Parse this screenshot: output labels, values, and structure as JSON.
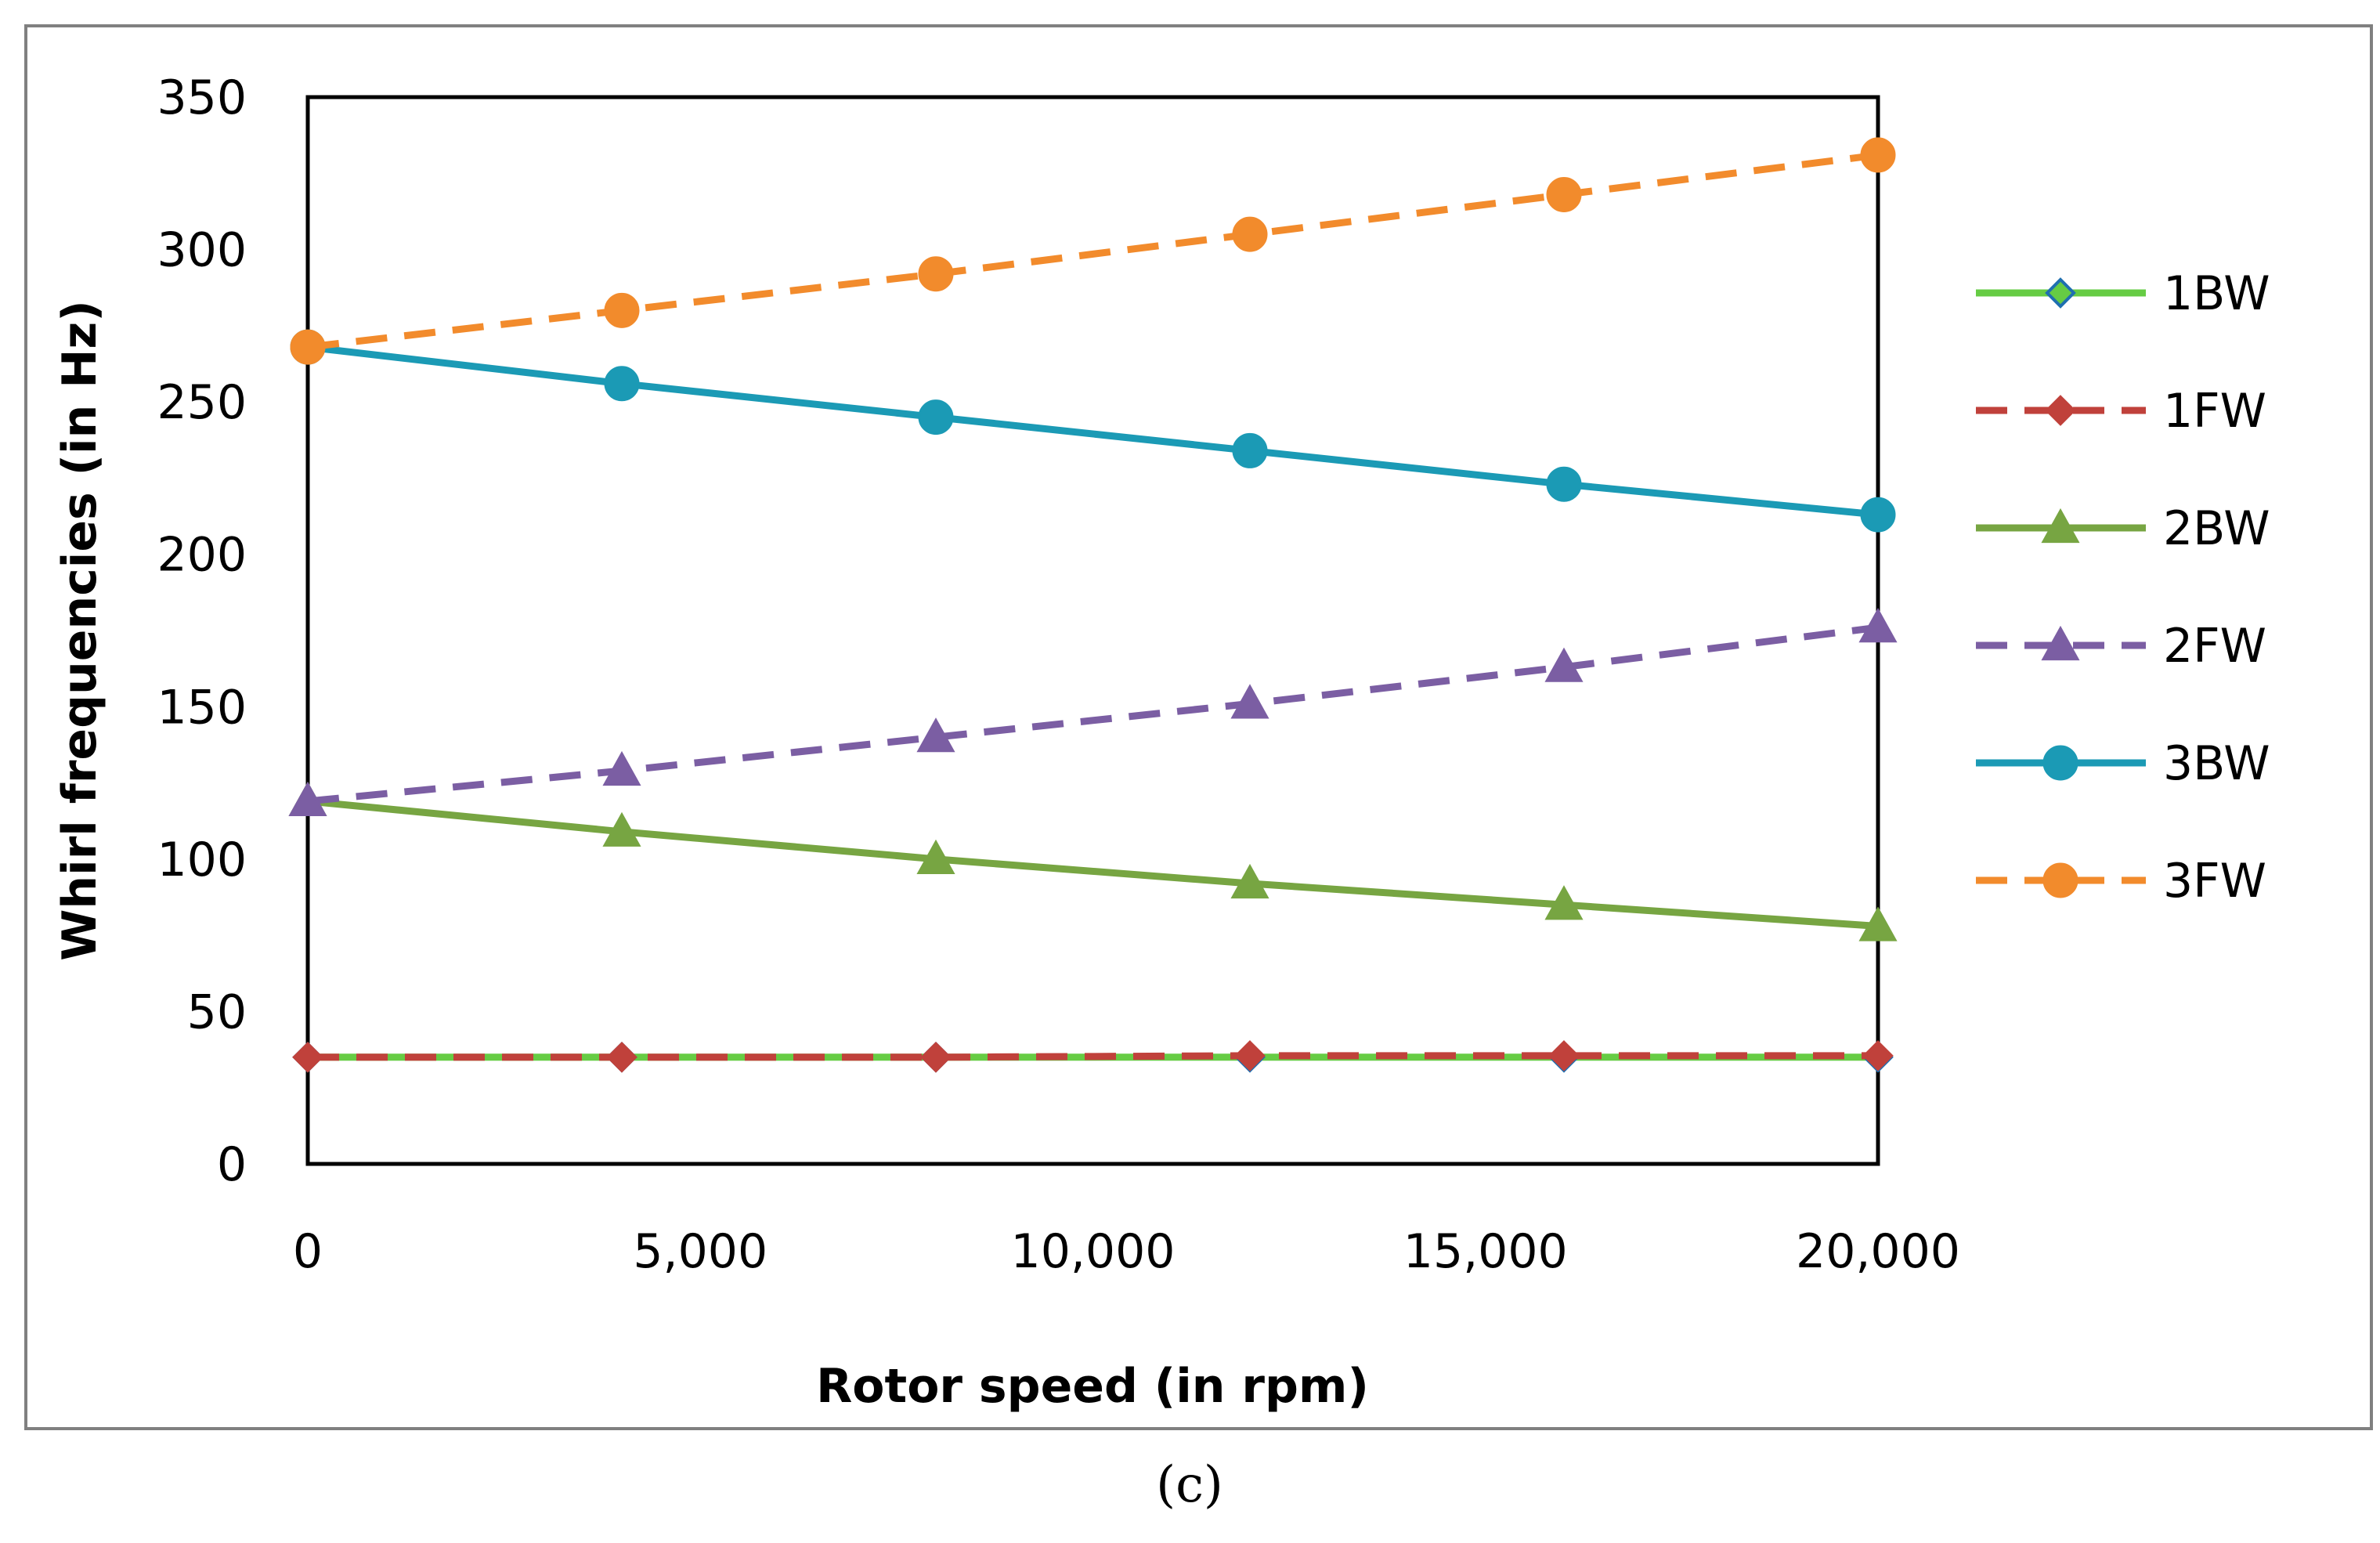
{
  "chart_data": {
    "type": "line",
    "title": "",
    "xlabel": "Rotor speed (in rpm)",
    "ylabel": "Whirl frequencies (in Hz)",
    "caption": "(c)",
    "x": [
      0,
      4000,
      8000,
      12000,
      16000,
      20000
    ],
    "xlim": [
      0,
      20000
    ],
    "ylim": [
      0,
      350
    ],
    "xticks": [
      0,
      5000,
      10000,
      15000,
      20000
    ],
    "xtick_labels": [
      "0",
      "5,000",
      "10,000",
      "15,000",
      "20,000"
    ],
    "yticks": [
      0,
      50,
      100,
      150,
      200,
      250,
      300,
      350
    ],
    "ytick_labels": [
      "0",
      "50",
      "100",
      "150",
      "200",
      "250",
      "300",
      "350"
    ],
    "grid": false,
    "legend_position": "right",
    "series": [
      {
        "name": "1BW",
        "values": [
          35,
          35,
          35,
          35,
          35,
          35
        ],
        "color": "#66cc44",
        "marker_fill": "#66cc44",
        "marker_stroke": "#1f6fb0",
        "marker": "diamond",
        "dashed": false
      },
      {
        "name": "1FW",
        "values": [
          35,
          35,
          35,
          35.5,
          35.5,
          35.5
        ],
        "color": "#c0413b",
        "marker_fill": "#c0413b",
        "marker_stroke": "#c0413b",
        "marker": "diamond",
        "dashed": true
      },
      {
        "name": "2BW",
        "values": [
          119,
          109,
          100,
          92,
          85,
          78
        ],
        "color": "#77a542",
        "marker_fill": "#77a542",
        "marker_stroke": "#77a542",
        "marker": "triangle",
        "dashed": false
      },
      {
        "name": "2FW",
        "values": [
          119,
          129,
          140,
          151,
          163,
          176
        ],
        "color": "#7b5ea3",
        "marker_fill": "#7b5ea3",
        "marker_stroke": "#7b5ea3",
        "marker": "triangle",
        "dashed": true
      },
      {
        "name": "3BW",
        "values": [
          268,
          256,
          245,
          234,
          223,
          213
        ],
        "color": "#1b9ab5",
        "marker_fill": "#1b9ab5",
        "marker_stroke": "#1b9ab5",
        "marker": "circle",
        "dashed": false
      },
      {
        "name": "3FW",
        "values": [
          268,
          280,
          292,
          305,
          318,
          331
        ],
        "color": "#f28b2c",
        "marker_fill": "#f28b2c",
        "marker_stroke": "#f28b2c",
        "marker": "circle",
        "dashed": true
      }
    ]
  }
}
